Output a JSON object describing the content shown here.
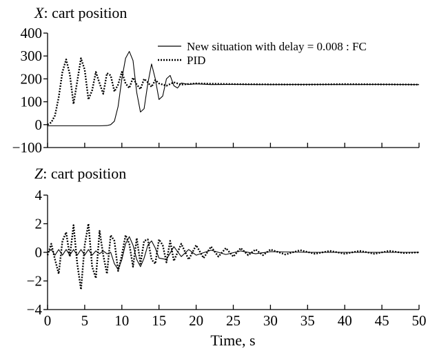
{
  "chart_data": [
    {
      "type": "line",
      "title_var": "X",
      "title_rest": ": cart position",
      "ylim": [
        -100,
        400
      ],
      "yticks": [
        -100,
        0,
        100,
        200,
        300,
        400
      ],
      "ytick_labels": [
        "−100",
        "0",
        "100",
        "200",
        "300",
        "400"
      ],
      "legend_placement": "top-right",
      "grid": false,
      "series": [
        {
          "name": "New situation with delay = 0.008 : FC",
          "style": "solid",
          "x": [
            0,
            1,
            2,
            3,
            4,
            5,
            6,
            7,
            8,
            8.5,
            9,
            9.5,
            10,
            10.5,
            11,
            11.5,
            12,
            12.5,
            13,
            13.5,
            14,
            14.5,
            15,
            15.5,
            16,
            16.5,
            17,
            17.5,
            18,
            19,
            20,
            22,
            25,
            30,
            35,
            40,
            45,
            50
          ],
          "y": [
            -5,
            -5,
            -5,
            -5,
            -5,
            -5,
            -5,
            -5,
            -4,
            0,
            15,
            80,
            200,
            290,
            320,
            280,
            140,
            55,
            70,
            180,
            265,
            200,
            110,
            125,
            200,
            215,
            170,
            160,
            182,
            176,
            178,
            175,
            176,
            175,
            176,
            175,
            176,
            175
          ]
        },
        {
          "name": "PID",
          "style": "dotted",
          "x": [
            0,
            0.5,
            1,
            1.5,
            2,
            2.5,
            3,
            3.5,
            4,
            4.5,
            5,
            5.5,
            6,
            6.5,
            7,
            7.5,
            8,
            8.5,
            9,
            9.5,
            10,
            10.5,
            11,
            11.5,
            12,
            12.5,
            13,
            13.5,
            14,
            14.5,
            15,
            16,
            17,
            18,
            20,
            25,
            30,
            35,
            40,
            45,
            50
          ],
          "y": [
            0,
            10,
            40,
            120,
            230,
            285,
            220,
            90,
            190,
            290,
            240,
            110,
            150,
            230,
            180,
            135,
            225,
            215,
            145,
            175,
            230,
            180,
            160,
            205,
            175,
            155,
            200,
            185,
            165,
            195,
            180,
            170,
            185,
            175,
            180,
            177,
            176,
            175,
            177,
            176,
            175
          ]
        }
      ]
    },
    {
      "type": "line",
      "title_var": "Z",
      "title_rest": ": cart position",
      "ylim": [
        -4,
        4
      ],
      "yticks": [
        -4,
        -2,
        0,
        2,
        4
      ],
      "ytick_labels": [
        "−4",
        "−2",
        "0",
        "2",
        "4"
      ],
      "xlim": [
        0,
        50
      ],
      "xticks": [
        0,
        5,
        10,
        15,
        20,
        25,
        30,
        35,
        40,
        45,
        50
      ],
      "xtick_labels": [
        "0",
        "5",
        "10",
        "15",
        "20",
        "25",
        "30",
        "35",
        "40",
        "45",
        "50"
      ],
      "xlabel": "Time, s",
      "grid": false,
      "series": [
        {
          "name": "FC",
          "style": "solid",
          "x": [
            0,
            0.5,
            1,
            1.5,
            2,
            2.5,
            3,
            3.5,
            4,
            4.5,
            5,
            5.5,
            6,
            6.5,
            7,
            7.5,
            8,
            8.5,
            9,
            9.5,
            10,
            10.5,
            11,
            11.5,
            12,
            12.5,
            13,
            13.5,
            14,
            14.5,
            15,
            16,
            17,
            18,
            19,
            20,
            22,
            24,
            26,
            28,
            30,
            35,
            40,
            45,
            50
          ],
          "y": [
            0,
            0.2,
            -0.2,
            0.2,
            -0.2,
            0.2,
            -0.2,
            0.2,
            -0.2,
            0.2,
            -0.2,
            0.2,
            -0.2,
            0.1,
            -0.1,
            0.1,
            -0.1,
            0,
            -0.8,
            -1.2,
            -0.5,
            0.6,
            1.1,
            0.5,
            -0.5,
            -1,
            -0.4,
            0.5,
            0.8,
            0.3,
            -0.4,
            -0.5,
            0.4,
            -0.3,
            0.2,
            -0.2,
            0.15,
            -0.15,
            0.1,
            -0.1,
            0.05,
            0,
            0,
            0,
            0
          ]
        },
        {
          "name": "PID",
          "style": "dotted",
          "x": [
            0,
            0.5,
            1,
            1.5,
            2,
            2.5,
            3,
            3.5,
            4,
            4.5,
            5,
            5.5,
            6,
            6.5,
            7,
            7.5,
            8,
            8.5,
            9,
            9.5,
            10,
            10.5,
            11,
            11.5,
            12,
            12.5,
            13,
            13.5,
            14,
            14.5,
            15,
            15.5,
            16,
            16.5,
            17,
            18,
            19,
            20,
            21,
            22,
            23,
            24,
            25,
            26,
            27,
            28,
            29,
            30,
            32,
            34,
            36,
            38,
            40,
            42,
            44,
            46,
            48,
            50
          ],
          "y": [
            -0.2,
            0.6,
            -0.5,
            -1.5,
            0.8,
            1.4,
            -0.3,
            1.9,
            -0.8,
            -2.6,
            0.5,
            2.0,
            -1.0,
            -1.8,
            1.5,
            -0.2,
            -1.5,
            1.2,
            0.8,
            -1.3,
            -0.2,
            1.2,
            0.6,
            -1.0,
            1.0,
            -0.8,
            0.8,
            0.9,
            -0.5,
            -0.8,
            0.9,
            0.5,
            -0.7,
            0.8,
            -0.6,
            0.6,
            -0.5,
            0.5,
            -0.4,
            0.4,
            -0.3,
            0.3,
            -0.3,
            0.3,
            -0.2,
            0.2,
            -0.2,
            0.2,
            -0.15,
            0.15,
            -0.1,
            0.1,
            -0.1,
            0.1,
            -0.1,
            0.1,
            -0.05,
            0
          ]
        }
      ]
    }
  ]
}
